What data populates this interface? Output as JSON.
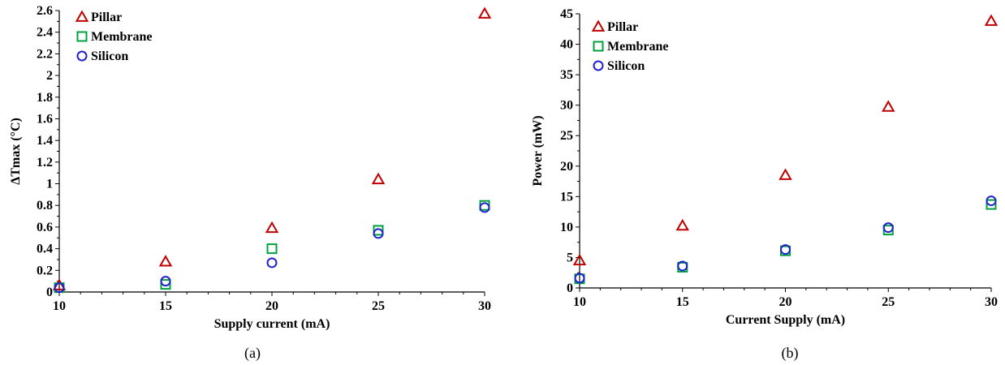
{
  "colors": {
    "pillar": "#c00000",
    "membrane": "#00a040",
    "silicon": "#2020d0",
    "axis": "#000000"
  },
  "chart_data": [
    {
      "type": "scatter",
      "caption": "(a)",
      "xlabel": "Supply current (mA)",
      "ylabel": "ΔTmax (°C)",
      "xlim": [
        10,
        30
      ],
      "ylim": [
        0,
        2.6
      ],
      "xticks": [
        10,
        15,
        20,
        25,
        30
      ],
      "yticks": [
        0,
        0.2,
        0.4,
        0.6,
        0.8,
        1,
        1.2,
        1.4,
        1.6,
        1.8,
        2,
        2.2,
        2.4,
        2.6
      ],
      "legend_position": "top-left",
      "grid": false,
      "series": [
        {
          "name": "Pillar",
          "marker": "triangle",
          "color_key": "pillar",
          "x": [
            10,
            15,
            20,
            25,
            30
          ],
          "y": [
            0.06,
            0.28,
            0.59,
            1.04,
            2.57
          ]
        },
        {
          "name": "Membrane",
          "marker": "square",
          "color_key": "membrane",
          "x": [
            10,
            15,
            20,
            25,
            30
          ],
          "y": [
            0.04,
            0.07,
            0.4,
            0.57,
            0.8
          ]
        },
        {
          "name": "Silicon",
          "marker": "circle",
          "color_key": "silicon",
          "x": [
            10,
            15,
            20,
            25,
            30
          ],
          "y": [
            0.04,
            0.1,
            0.27,
            0.54,
            0.78
          ]
        }
      ]
    },
    {
      "type": "scatter",
      "caption": "(b)",
      "xlabel": "Current Supply (mA)",
      "ylabel": "Power (mW)",
      "xlim": [
        10,
        30
      ],
      "ylim": [
        0,
        45
      ],
      "xticks": [
        10,
        15,
        20,
        25,
        30
      ],
      "yticks": [
        0,
        5,
        10,
        15,
        20,
        25,
        30,
        35,
        40,
        45
      ],
      "legend_position": "top-left",
      "grid": false,
      "series": [
        {
          "name": "Pillar",
          "marker": "triangle",
          "color_key": "pillar",
          "x": [
            10,
            15,
            20,
            25,
            30
          ],
          "y": [
            4.5,
            10.2,
            18.5,
            29.7,
            43.8
          ]
        },
        {
          "name": "Membrane",
          "marker": "square",
          "color_key": "membrane",
          "x": [
            10,
            15,
            20,
            25,
            30
          ],
          "y": [
            1.5,
            3.4,
            6.1,
            9.5,
            13.7
          ]
        },
        {
          "name": "Silicon",
          "marker": "circle",
          "color_key": "silicon",
          "x": [
            10,
            15,
            20,
            25,
            30
          ],
          "y": [
            1.6,
            3.6,
            6.3,
            9.9,
            14.3
          ]
        }
      ]
    }
  ]
}
